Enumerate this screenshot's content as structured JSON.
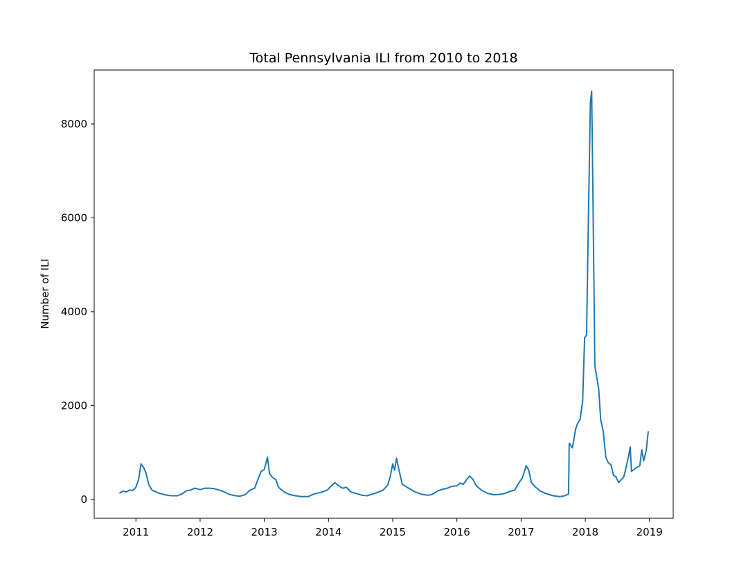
{
  "chart_data": {
    "type": "line",
    "title": "Total Pennsylvania ILI from 2010 to 2018",
    "xlabel": "",
    "ylabel": "Number of ILI",
    "xlim": [
      2010.35,
      2019.37
    ],
    "ylim": [
      -400,
      9150
    ],
    "x_ticks": [
      2011,
      2012,
      2013,
      2014,
      2015,
      2016,
      2017,
      2018,
      2019
    ],
    "y_ticks": [
      0,
      2000,
      4000,
      6000,
      8000
    ],
    "grid": false,
    "legend": "none",
    "series": [
      {
        "color": "#1f77b4",
        "points": [
          [
            2010.75,
            140
          ],
          [
            2010.8,
            180
          ],
          [
            2010.85,
            160
          ],
          [
            2010.9,
            200
          ],
          [
            2010.95,
            190
          ],
          [
            2011.0,
            260
          ],
          [
            2011.04,
            420
          ],
          [
            2011.08,
            760
          ],
          [
            2011.12,
            680
          ],
          [
            2011.16,
            550
          ],
          [
            2011.2,
            320
          ],
          [
            2011.25,
            200
          ],
          [
            2011.35,
            140
          ],
          [
            2011.45,
            100
          ],
          [
            2011.55,
            80
          ],
          [
            2011.65,
            80
          ],
          [
            2011.72,
            120
          ],
          [
            2011.78,
            180
          ],
          [
            2011.85,
            200
          ],
          [
            2011.92,
            240
          ],
          [
            2012.0,
            210
          ],
          [
            2012.08,
            240
          ],
          [
            2012.15,
            240
          ],
          [
            2012.22,
            230
          ],
          [
            2012.3,
            200
          ],
          [
            2012.38,
            160
          ],
          [
            2012.45,
            110
          ],
          [
            2012.55,
            80
          ],
          [
            2012.62,
            70
          ],
          [
            2012.7,
            100
          ],
          [
            2012.78,
            200
          ],
          [
            2012.85,
            240
          ],
          [
            2012.9,
            420
          ],
          [
            2012.95,
            600
          ],
          [
            2013.0,
            640
          ],
          [
            2013.05,
            900
          ],
          [
            2013.08,
            560
          ],
          [
            2013.12,
            480
          ],
          [
            2013.18,
            420
          ],
          [
            2013.22,
            260
          ],
          [
            2013.3,
            170
          ],
          [
            2013.38,
            110
          ],
          [
            2013.48,
            80
          ],
          [
            2013.58,
            60
          ],
          [
            2013.68,
            60
          ],
          [
            2013.78,
            120
          ],
          [
            2013.88,
            150
          ],
          [
            2013.98,
            200
          ],
          [
            2014.05,
            300
          ],
          [
            2014.1,
            360
          ],
          [
            2014.15,
            300
          ],
          [
            2014.22,
            240
          ],
          [
            2014.28,
            260
          ],
          [
            2014.35,
            160
          ],
          [
            2014.45,
            120
          ],
          [
            2014.52,
            90
          ],
          [
            2014.6,
            80
          ],
          [
            2014.7,
            120
          ],
          [
            2014.78,
            160
          ],
          [
            2014.85,
            200
          ],
          [
            2014.92,
            300
          ],
          [
            2014.96,
            480
          ],
          [
            2015.0,
            760
          ],
          [
            2015.03,
            620
          ],
          [
            2015.06,
            880
          ],
          [
            2015.1,
            620
          ],
          [
            2015.15,
            320
          ],
          [
            2015.25,
            240
          ],
          [
            2015.35,
            160
          ],
          [
            2015.45,
            110
          ],
          [
            2015.55,
            90
          ],
          [
            2015.62,
            110
          ],
          [
            2015.7,
            180
          ],
          [
            2015.78,
            220
          ],
          [
            2015.85,
            240
          ],
          [
            2015.92,
            280
          ],
          [
            2016.0,
            290
          ],
          [
            2016.05,
            350
          ],
          [
            2016.1,
            320
          ],
          [
            2016.15,
            420
          ],
          [
            2016.2,
            500
          ],
          [
            2016.25,
            430
          ],
          [
            2016.3,
            300
          ],
          [
            2016.38,
            200
          ],
          [
            2016.48,
            130
          ],
          [
            2016.58,
            100
          ],
          [
            2016.68,
            110
          ],
          [
            2016.75,
            130
          ],
          [
            2016.82,
            170
          ],
          [
            2016.9,
            200
          ],
          [
            2016.95,
            320
          ],
          [
            2017.02,
            460
          ],
          [
            2017.08,
            720
          ],
          [
            2017.12,
            620
          ],
          [
            2017.16,
            360
          ],
          [
            2017.22,
            270
          ],
          [
            2017.3,
            180
          ],
          [
            2017.4,
            120
          ],
          [
            2017.5,
            80
          ],
          [
            2017.6,
            60
          ],
          [
            2017.68,
            80
          ],
          [
            2017.74,
            120
          ],
          [
            2017.75,
            1200
          ],
          [
            2017.8,
            1100
          ],
          [
            2017.85,
            1500
          ],
          [
            2017.88,
            1620
          ],
          [
            2017.92,
            1700
          ],
          [
            2017.96,
            2100
          ],
          [
            2017.99,
            3450
          ],
          [
            2018.02,
            3500
          ],
          [
            2018.05,
            6100
          ],
          [
            2018.08,
            8450
          ],
          [
            2018.1,
            8700
          ],
          [
            2018.12,
            6500
          ],
          [
            2018.15,
            2850
          ],
          [
            2018.18,
            2600
          ],
          [
            2018.21,
            2350
          ],
          [
            2018.24,
            1700
          ],
          [
            2018.28,
            1450
          ],
          [
            2018.32,
            900
          ],
          [
            2018.36,
            780
          ],
          [
            2018.4,
            740
          ],
          [
            2018.44,
            520
          ],
          [
            2018.48,
            480
          ],
          [
            2018.52,
            360
          ],
          [
            2018.56,
            420
          ],
          [
            2018.6,
            480
          ],
          [
            2018.64,
            700
          ],
          [
            2018.68,
            950
          ],
          [
            2018.7,
            1120
          ],
          [
            2018.72,
            600
          ],
          [
            2018.76,
            640
          ],
          [
            2018.8,
            680
          ],
          [
            2018.85,
            720
          ],
          [
            2018.88,
            1060
          ],
          [
            2018.91,
            820
          ],
          [
            2018.95,
            1050
          ],
          [
            2018.98,
            1440
          ]
        ]
      }
    ]
  }
}
